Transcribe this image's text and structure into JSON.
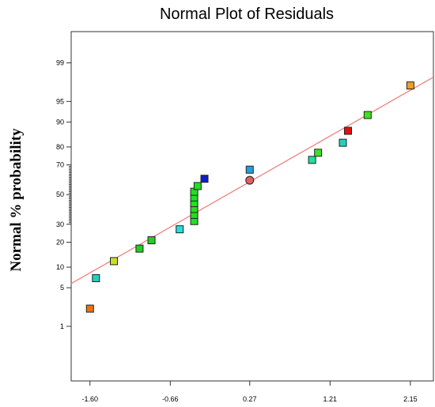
{
  "chart_data": {
    "type": "scatter",
    "title": "Normal Plot of Residuals",
    "xlabel": "",
    "ylabel": "Normal % probability",
    "x_ticks": [
      "-1.60",
      "-0.66",
      "0.27",
      "1.21",
      "2.15"
    ],
    "x_tick_values": [
      -1.6,
      -0.66,
      0.27,
      1.21,
      2.15
    ],
    "y_ticks": [
      "1",
      "5",
      "10",
      "20",
      "30",
      "50",
      "70",
      "80",
      "90",
      "95",
      "99"
    ],
    "y_tick_values": [
      1,
      5,
      10,
      20,
      30,
      50,
      70,
      80,
      90,
      95,
      99
    ],
    "y_scale": "normal-probability",
    "xlim": [
      -1.82,
      2.42
    ],
    "ylim": [
      0.05,
      99.8
    ],
    "grid": false,
    "fit_line": {
      "x": [
        -1.82,
        2.42
      ],
      "y": [
        5.8,
        98.1
      ],
      "color": "#f08080"
    },
    "points": [
      {
        "x": -1.6,
        "y": 2.2,
        "color": "#f07010",
        "marker": "square"
      },
      {
        "x": -1.53,
        "y": 7.0,
        "color": "#20d0c0",
        "marker": "square"
      },
      {
        "x": -1.32,
        "y": 12.0,
        "color": "#c8e020",
        "marker": "square"
      },
      {
        "x": -1.02,
        "y": 17.0,
        "color": "#20d020",
        "marker": "square"
      },
      {
        "x": -0.88,
        "y": 21.0,
        "color": "#20d020",
        "marker": "square"
      },
      {
        "x": -0.55,
        "y": 27.0,
        "color": "#20e0e0",
        "marker": "square"
      },
      {
        "x": -0.38,
        "y": 32.0,
        "color": "#20e020",
        "marker": "square"
      },
      {
        "x": -0.38,
        "y": 36.0,
        "color": "#20e020",
        "marker": "square"
      },
      {
        "x": -0.38,
        "y": 40.0,
        "color": "#20e020",
        "marker": "square"
      },
      {
        "x": -0.38,
        "y": 44.0,
        "color": "#20e020",
        "marker": "square"
      },
      {
        "x": -0.38,
        "y": 48.0,
        "color": "#20e020",
        "marker": "square"
      },
      {
        "x": -0.38,
        "y": 52.0,
        "color": "#20e020",
        "marker": "square"
      },
      {
        "x": -0.34,
        "y": 56.0,
        "color": "#20e020",
        "marker": "square"
      },
      {
        "x": -0.26,
        "y": 61.0,
        "color": "#1020c0",
        "marker": "square"
      },
      {
        "x": 0.27,
        "y": 67.0,
        "color": "#20a0e0",
        "marker": "square"
      },
      {
        "x": 0.27,
        "y": 60.0,
        "color": "#e06060",
        "marker": "circle"
      },
      {
        "x": 1.0,
        "y": 73.0,
        "color": "#20e0a0",
        "marker": "square"
      },
      {
        "x": 1.07,
        "y": 77.0,
        "color": "#40e020",
        "marker": "square"
      },
      {
        "x": 1.36,
        "y": 82.0,
        "color": "#20d0c0",
        "marker": "square"
      },
      {
        "x": 1.42,
        "y": 87.0,
        "color": "#e01010",
        "marker": "square"
      },
      {
        "x": 1.65,
        "y": 92.0,
        "color": "#40e020",
        "marker": "square"
      },
      {
        "x": 2.15,
        "y": 97.3,
        "color": "#f0a020",
        "marker": "square"
      }
    ]
  }
}
